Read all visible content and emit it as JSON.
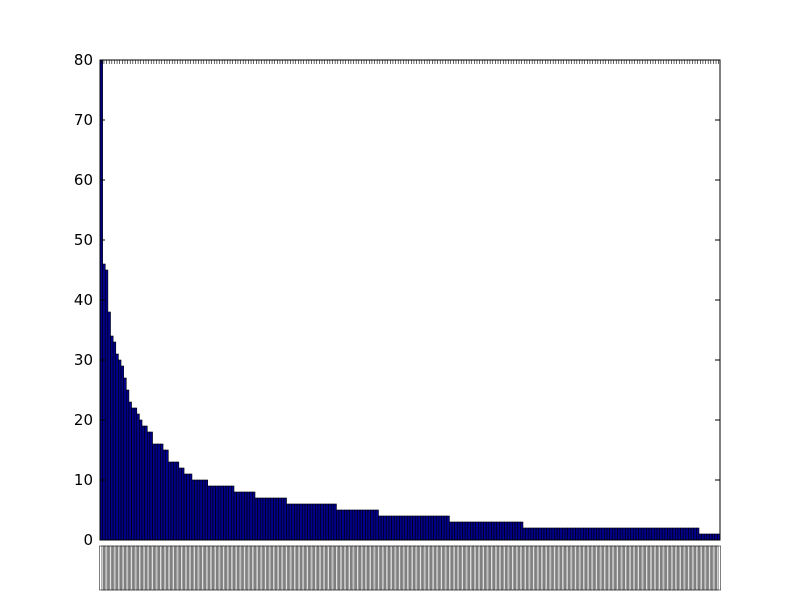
{
  "chart_data": {
    "type": "bar",
    "title": "",
    "xlabel": "",
    "ylabel": "",
    "ylim": [
      0,
      80
    ],
    "yticks": [
      0,
      10,
      20,
      30,
      40,
      50,
      60,
      70,
      80
    ],
    "grid": false,
    "legend": "none",
    "bar_color": "#00008b",
    "x_tick_labels": "illegible (rendered as missing-glyph boxes)",
    "values": [
      80,
      46,
      45,
      38,
      34,
      33,
      31,
      30,
      29,
      27,
      25,
      23,
      22,
      22,
      21,
      20,
      19,
      19,
      18,
      18,
      16,
      16,
      16,
      16,
      15,
      15,
      13,
      13,
      13,
      13,
      12,
      12,
      11,
      11,
      11,
      10,
      10,
      10,
      10,
      10,
      10,
      9,
      9,
      9,
      9,
      9,
      9,
      9,
      9,
      9,
      9,
      8,
      8,
      8,
      8,
      8,
      8,
      8,
      8,
      7,
      7,
      7,
      7,
      7,
      7,
      7,
      7,
      7,
      7,
      7,
      7,
      6,
      6,
      6,
      6,
      6,
      6,
      6,
      6,
      6,
      6,
      6,
      6,
      6,
      6,
      6,
      6,
      6,
      6,
      6,
      5,
      5,
      5,
      5,
      5,
      5,
      5,
      5,
      5,
      5,
      5,
      5,
      5,
      5,
      5,
      5,
      4,
      4,
      4,
      4,
      4,
      4,
      4,
      4,
      4,
      4,
      4,
      4,
      4,
      4,
      4,
      4,
      4,
      4,
      4,
      4,
      4,
      4,
      4,
      4,
      4,
      4,
      4,
      3,
      3,
      3,
      3,
      3,
      3,
      3,
      3,
      3,
      3,
      3,
      3,
      3,
      3,
      3,
      3,
      3,
      3,
      3,
      3,
      3,
      3,
      3,
      3,
      3,
      3,
      3,
      3,
      2,
      2,
      2,
      2,
      2,
      2,
      2,
      2,
      2,
      2,
      2,
      2,
      2,
      2,
      2,
      2,
      2,
      2,
      2,
      2,
      2,
      2,
      2,
      2,
      2,
      2,
      2,
      2,
      2,
      2,
      2,
      2,
      2,
      2,
      2,
      2,
      2,
      2,
      2,
      2,
      2,
      2,
      2,
      2,
      2,
      2,
      2,
      2,
      2,
      2,
      2,
      2,
      2,
      2,
      2,
      2,
      2,
      2,
      2,
      2,
      2,
      2,
      2,
      2,
      2,
      2,
      2,
      1,
      1,
      1,
      1,
      1,
      1,
      1,
      1
    ]
  }
}
